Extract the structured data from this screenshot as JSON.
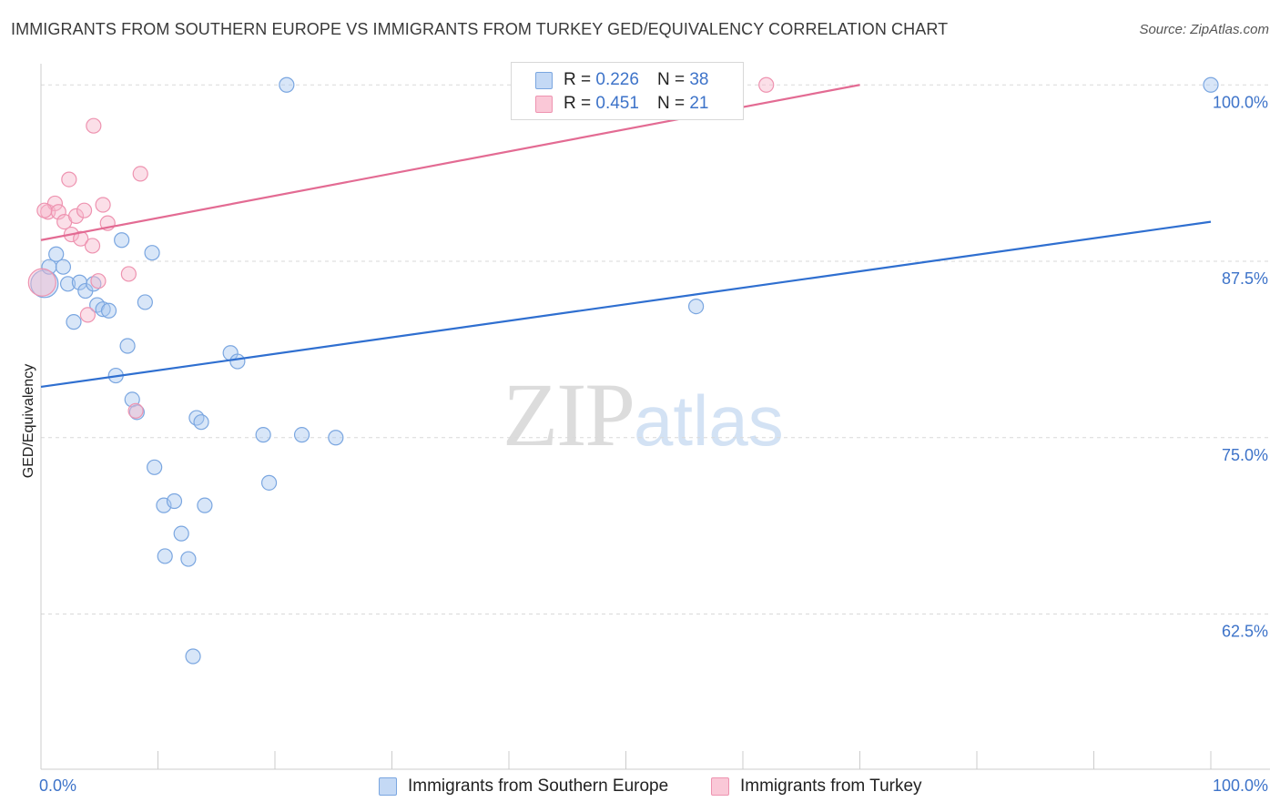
{
  "title": "IMMIGRANTS FROM SOUTHERN EUROPE VS IMMIGRANTS FROM TURKEY GED/EQUIVALENCY CORRELATION CHART",
  "source": "Source: ZipAtlas.com",
  "watermark": {
    "zip": "ZIP",
    "atlas": "atlas"
  },
  "legend": {
    "rows": [
      {
        "r_label": "R = ",
        "r_value": "0.226",
        "n_label": "N = ",
        "n_value": "38"
      },
      {
        "r_label": "R = ",
        "r_value": "0.451",
        "n_label": "N = ",
        "n_value": "21"
      }
    ]
  },
  "bottom_legend": [
    "Immigrants from Southern Europe",
    "Immigrants from Turkey"
  ],
  "colors": {
    "blue_fill": "#a9c8f0",
    "blue_stroke": "#7aa6e0",
    "blue_line": "#2f6fd0",
    "pink_fill": "#f7b8cb",
    "pink_stroke": "#ee93b0",
    "pink_line": "#e36b93",
    "grid": "#d9d9d9",
    "tick": "#3d73c9"
  },
  "chart_data": {
    "type": "scatter",
    "title": "IMMIGRANTS FROM SOUTHERN EUROPE VS IMMIGRANTS FROM TURKEY GED/EQUIVALENCY CORRELATION CHART",
    "xlabel": "",
    "ylabel": "GED/Equivalency",
    "xlim": [
      0,
      100
    ],
    "ylim": [
      51.5,
      101.5
    ],
    "x_tick_labels": [
      "0.0%",
      "100.0%"
    ],
    "y_ticks": [
      62.5,
      75.0,
      87.5,
      100.0
    ],
    "y_tick_labels": [
      "62.5%",
      "75.0%",
      "87.5%",
      "100.0%"
    ],
    "grid": true,
    "series": [
      {
        "name": "Immigrants from Southern Europe",
        "color": "#a9c8f0",
        "points": [
          [
            21.0,
            100.0
          ],
          [
            100.0,
            100.0
          ],
          [
            0.3,
            85.9
          ],
          [
            0.7,
            87.1
          ],
          [
            1.3,
            88.0
          ],
          [
            1.9,
            87.1
          ],
          [
            2.3,
            85.9
          ],
          [
            2.8,
            83.2
          ],
          [
            3.3,
            86.0
          ],
          [
            3.8,
            85.4
          ],
          [
            4.5,
            85.9
          ],
          [
            4.8,
            84.4
          ],
          [
            5.3,
            84.1
          ],
          [
            5.8,
            84.0
          ],
          [
            6.4,
            79.4
          ],
          [
            6.9,
            89.0
          ],
          [
            7.4,
            81.5
          ],
          [
            7.8,
            77.7
          ],
          [
            8.2,
            76.8
          ],
          [
            8.9,
            84.6
          ],
          [
            9.5,
            88.1
          ],
          [
            9.7,
            72.9
          ],
          [
            10.5,
            70.2
          ],
          [
            10.6,
            66.6
          ],
          [
            11.4,
            70.5
          ],
          [
            12.0,
            68.2
          ],
          [
            12.6,
            66.4
          ],
          [
            13.3,
            76.4
          ],
          [
            13.7,
            76.1
          ],
          [
            14.0,
            70.2
          ],
          [
            13.0,
            59.5
          ],
          [
            16.2,
            81.0
          ],
          [
            16.8,
            80.4
          ],
          [
            19.0,
            75.2
          ],
          [
            19.5,
            71.8
          ],
          [
            22.3,
            75.2
          ],
          [
            25.2,
            75.0
          ],
          [
            56.0,
            84.3
          ]
        ],
        "trend": {
          "x": [
            0,
            100
          ],
          "y": [
            78.6,
            90.3
          ]
        }
      },
      {
        "name": "Immigrants from Turkey",
        "color": "#f7b8cb",
        "points": [
          [
            62.0,
            100.0
          ],
          [
            4.5,
            97.1
          ],
          [
            8.5,
            93.7
          ],
          [
            2.4,
            93.3
          ],
          [
            0.6,
            91.0
          ],
          [
            1.2,
            91.6
          ],
          [
            1.5,
            91.0
          ],
          [
            2.0,
            90.3
          ],
          [
            2.6,
            89.4
          ],
          [
            3.0,
            90.7
          ],
          [
            3.4,
            89.1
          ],
          [
            3.7,
            91.1
          ],
          [
            4.4,
            88.6
          ],
          [
            5.3,
            91.5
          ],
          [
            5.7,
            90.2
          ],
          [
            7.5,
            86.6
          ],
          [
            4.9,
            86.1
          ],
          [
            4.0,
            83.7
          ],
          [
            8.1,
            76.9
          ],
          [
            0.1,
            86.0
          ],
          [
            0.3,
            91.1
          ]
        ],
        "trend": {
          "x": [
            0,
            70
          ],
          "y": [
            89.0,
            100.0
          ]
        }
      }
    ]
  }
}
